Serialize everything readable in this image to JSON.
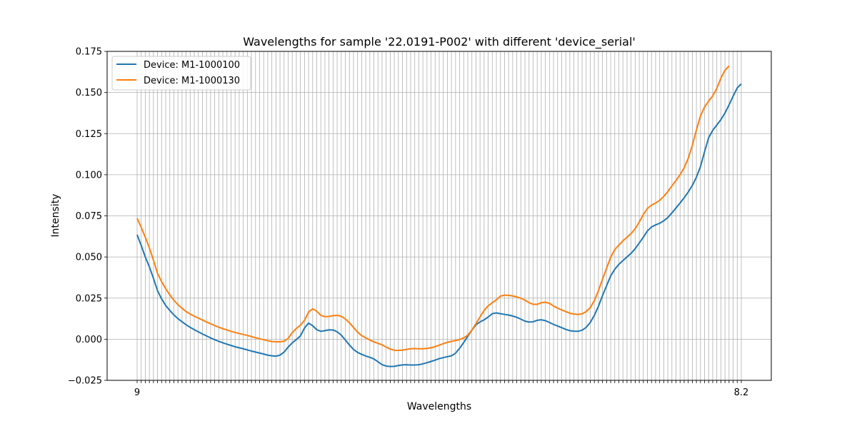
{
  "chart_data": {
    "type": "line",
    "title": "Wavelengths for sample '22.0191-P002' with different 'device_serial'",
    "xlabel": "Wavelengths",
    "ylabel": "Intensity",
    "ylim": [
      -0.025,
      0.175
    ],
    "yticks": [
      "−0.025",
      "0.000",
      "0.025",
      "0.050",
      "0.075",
      "0.100",
      "0.125",
      "0.150",
      "0.175"
    ],
    "ytick_values": [
      -0.025,
      0.0,
      0.025,
      0.05,
      0.075,
      0.1,
      0.125,
      0.15,
      0.175
    ],
    "x_tick_first": "9",
    "x_tick_last": "8.2",
    "grid": true,
    "legend_position": "top-left",
    "colors": {
      "series_1": "#1f77b4",
      "series_2": "#ff7f0e",
      "grid": "#b0b0b0"
    },
    "series": [
      {
        "name": "Device: M1-1000100",
        "values": [
          0.0635,
          0.057,
          0.05,
          0.044,
          0.037,
          0.0295,
          0.0245,
          0.0205,
          0.0175,
          0.0148,
          0.0125,
          0.0106,
          0.0088,
          0.0072,
          0.0058,
          0.0045,
          0.0032,
          0.002,
          0.0008,
          -0.0003,
          -0.0013,
          -0.0022,
          -0.003,
          -0.0038,
          -0.0046,
          -0.0052,
          -0.0058,
          -0.0065,
          -0.0072,
          -0.0078,
          -0.0084,
          -0.009,
          -0.0097,
          -0.0101,
          -0.0103,
          -0.0097,
          -0.0078,
          -0.0048,
          -0.0022,
          -0.0002,
          0.002,
          0.0068,
          0.0098,
          0.0082,
          0.0058,
          0.0048,
          0.0052,
          0.0057,
          0.0056,
          0.0045,
          0.0025,
          -0.0005,
          -0.0035,
          -0.0062,
          -0.008,
          -0.0092,
          -0.0102,
          -0.011,
          -0.012,
          -0.0137,
          -0.0155,
          -0.0163,
          -0.0166,
          -0.0165,
          -0.016,
          -0.0156,
          -0.0155,
          -0.0157,
          -0.0157,
          -0.0155,
          -0.015,
          -0.0143,
          -0.0135,
          -0.0127,
          -0.0118,
          -0.0112,
          -0.0106,
          -0.0101,
          -0.0085,
          -0.0055,
          -0.002,
          0.0018,
          0.0055,
          0.0088,
          0.0105,
          0.0118,
          0.0135,
          0.0155,
          0.016,
          0.0155,
          0.0151,
          0.0147,
          0.0141,
          0.0133,
          0.0122,
          0.011,
          0.0104,
          0.0106,
          0.0115,
          0.0118,
          0.0113,
          0.0102,
          0.009,
          0.008,
          0.007,
          0.006,
          0.0052,
          0.0049,
          0.0048,
          0.0055,
          0.0072,
          0.0102,
          0.0145,
          0.02,
          0.0265,
          0.0325,
          0.0385,
          0.0425,
          0.0455,
          0.0478,
          0.05,
          0.0522,
          0.055,
          0.0585,
          0.062,
          0.0658,
          0.0682,
          0.0695,
          0.0705,
          0.072,
          0.074,
          0.0768,
          0.0798,
          0.0828,
          0.086,
          0.0895,
          0.0935,
          0.0985,
          0.105,
          0.114,
          0.1225,
          0.127,
          0.1302,
          0.1335,
          0.1375,
          0.1425,
          0.1478,
          0.1528,
          0.1552
        ]
      },
      {
        "name": "Device: M1-1000130",
        "values": [
          0.0735,
          0.068,
          0.062,
          0.0555,
          0.048,
          0.04,
          0.035,
          0.0307,
          0.027,
          0.0237,
          0.021,
          0.0188,
          0.0168,
          0.0153,
          0.014,
          0.0128,
          0.0117,
          0.0105,
          0.0094,
          0.0083,
          0.0073,
          0.0064,
          0.0056,
          0.0048,
          0.0041,
          0.0035,
          0.0029,
          0.0023,
          0.0016,
          0.0009,
          0.0003,
          -0.0003,
          -0.0009,
          -0.0014,
          -0.0016,
          -0.0016,
          -0.0012,
          0.0005,
          0.004,
          0.0065,
          0.0085,
          0.0115,
          0.0165,
          0.0185,
          0.017,
          0.0145,
          0.0137,
          0.0139,
          0.0143,
          0.0145,
          0.014,
          0.0123,
          0.01,
          0.0072,
          0.0043,
          0.0022,
          0.0008,
          -0.0005,
          -0.0016,
          -0.0025,
          -0.0034,
          -0.0048,
          -0.006,
          -0.0067,
          -0.0068,
          -0.0066,
          -0.0062,
          -0.0058,
          -0.0057,
          -0.0058,
          -0.0058,
          -0.0056,
          -0.0052,
          -0.0045,
          -0.0036,
          -0.0027,
          -0.0019,
          -0.0013,
          -0.0008,
          -0.0002,
          0.0008,
          0.0025,
          0.0055,
          0.0095,
          0.0135,
          0.0175,
          0.0203,
          0.0222,
          0.024,
          0.0262,
          0.0268,
          0.0267,
          0.0263,
          0.0257,
          0.0249,
          0.0238,
          0.0222,
          0.0212,
          0.0212,
          0.0222,
          0.0225,
          0.0218,
          0.0202,
          0.0189,
          0.0178,
          0.0168,
          0.0158,
          0.0153,
          0.0151,
          0.0154,
          0.0168,
          0.0192,
          0.0235,
          0.0295,
          0.0365,
          0.0432,
          0.0498,
          0.0545,
          0.0572,
          0.0598,
          0.062,
          0.0642,
          0.0672,
          0.0712,
          0.0758,
          0.0795,
          0.0815,
          0.0828,
          0.0845,
          0.0868,
          0.0898,
          0.0932,
          0.0965,
          0.1,
          0.1042,
          0.11,
          0.1178,
          0.1272,
          0.1358,
          0.1412,
          0.1448,
          0.148,
          0.1525,
          0.1588,
          0.1635,
          0.1662
        ]
      }
    ]
  }
}
